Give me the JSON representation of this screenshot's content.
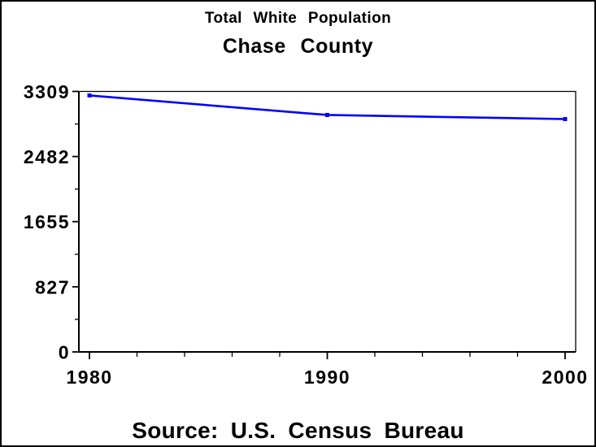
{
  "figure": {
    "title": "Total White Population",
    "subtitle": "Chase County",
    "footer": "Source: U.S. Census Bureau"
  },
  "chart_data": {
    "type": "line",
    "title": "Total White Population",
    "subtitle": "Chase County",
    "annotation": "Source: U.S. Census Bureau",
    "x": [
      1980,
      1990,
      2000
    ],
    "x_tick_labels": [
      "1980",
      "1990",
      "2000"
    ],
    "x_minor_ticks": [
      1982,
      1984,
      1986,
      1988,
      1992,
      1994,
      1996,
      1998
    ],
    "series": [
      {
        "name": "Total White Population",
        "color": "#0000FF",
        "values": [
          3258,
          3010,
          2958
        ],
        "marker": "square"
      }
    ],
    "xlim": [
      1980,
      2000
    ],
    "ylim": [
      0,
      3309
    ],
    "y_ticks": [
      0,
      827,
      1655,
      2482,
      3309
    ],
    "y_tick_labels": [
      "0",
      "827",
      "1655",
      "2482",
      "3309"
    ],
    "y_minor_ticks": [
      413.5,
      1241,
      2068.5,
      2895.5
    ],
    "xlabel": "",
    "ylabel": "",
    "grid": false,
    "frame": true,
    "legend": "none",
    "axis_color": "#000000",
    "text_color": "#000000",
    "background_color": "#FFFFFF"
  }
}
